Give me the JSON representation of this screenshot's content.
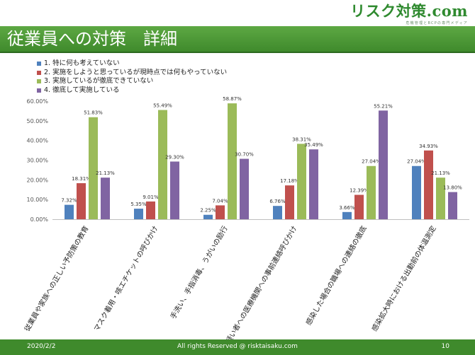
{
  "header": {
    "logo_text": "リスク対策.com",
    "logo_subtext": "危機管理とBCPの専門メディア",
    "slide_title": "従業員への対策　詳細"
  },
  "footer": {
    "date": "2020/2/2",
    "copyright": "All rights Reserved @ risktaisaku.com",
    "page_number": "10"
  },
  "colors": {
    "title_bar": "#3f8a2c",
    "series": [
      "#4f81bd",
      "#c0504d",
      "#9bbb59",
      "#8064a2"
    ]
  },
  "chart_data": {
    "type": "bar",
    "categories": [
      "従業員や家族への正しい予防策の教育",
      "マスク着用・咳エチケットの呼びかけ",
      "手洗い、手指消毒、うがいの励行",
      "感染疑い者への医療機関への事前連絡呼びかけ",
      "感染した場合の職場への連絡の徹底",
      "感染拡大時における出勤前の体温測定"
    ],
    "series": [
      {
        "name": "1. 特に何も考えていない",
        "values": [
          7.32,
          5.35,
          2.25,
          6.76,
          3.66,
          27.04
        ],
        "labels": [
          "7.32%",
          "5.35%",
          "2.25%",
          "6.76%",
          "3.66%",
          "27.04%"
        ]
      },
      {
        "name": "2. 実施をしようと思っているが現時点では何もやっていない",
        "values": [
          18.31,
          9.01,
          7.04,
          17.18,
          12.39,
          34.93
        ],
        "labels": [
          "18.31%",
          "9.01%",
          "7.04%",
          "17.18%",
          "12.39%",
          "34.93%"
        ]
      },
      {
        "name": "3. 実施しているが徹底できていない",
        "values": [
          51.83,
          55.49,
          58.87,
          38.31,
          27.04,
          21.13
        ],
        "labels": [
          "51.83%",
          "55.49%",
          "58.87%",
          "38.31%",
          "27.04%",
          "21.13%"
        ]
      },
      {
        "name": "4. 徹底して実施している",
        "values": [
          21.13,
          29.3,
          30.7,
          35.49,
          55.21,
          13.8
        ],
        "labels": [
          "21.13%",
          "29.30%",
          "30.70%",
          "35.49%",
          "55.21%",
          "13.80%"
        ]
      }
    ],
    "yticks": [
      "0.00%",
      "10.00%",
      "20.00%",
      "30.00%",
      "40.00%",
      "50.00%",
      "60.00%"
    ],
    "ylim": [
      0,
      60
    ],
    "grid": false,
    "legend_position": "top-left"
  }
}
